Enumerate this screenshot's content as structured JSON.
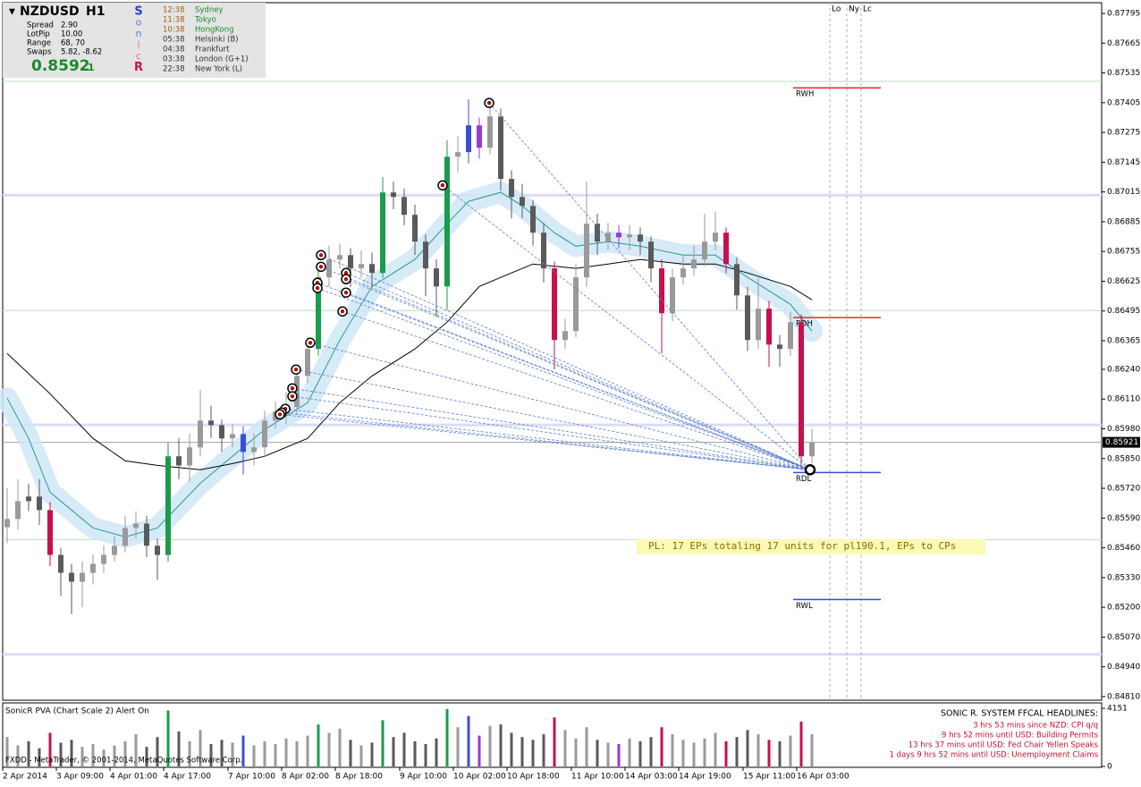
{
  "chart_data": {
    "type": "candlestick",
    "symbol": "NZDUSD",
    "timeframe": "H1",
    "categories": [
      "2 Apr 2014",
      null,
      null,
      null,
      null,
      "3 Apr 09:00",
      null,
      null,
      null,
      null,
      "4 Apr 01:00",
      null,
      null,
      null,
      null,
      "4 Apr 17:00",
      null,
      null,
      null,
      null,
      null,
      "7 Apr 10:00",
      null,
      null,
      null,
      null,
      "8 Apr 02:00",
      null,
      null,
      null,
      null,
      "8 Apr 18:00",
      null,
      null,
      null,
      null,
      null,
      "9 Apr 10:00",
      null,
      null,
      null,
      null,
      "10 Apr 02:00",
      null,
      null,
      null,
      null,
      "10 Apr 18:00",
      null,
      null,
      null,
      null,
      null,
      "11 Apr 10:00",
      null,
      null,
      null,
      null,
      "14 Apr 03:00",
      null,
      null,
      null,
      null,
      "14 Apr 19:00",
      null,
      null,
      null,
      null,
      null,
      "15 Apr 11:00",
      null,
      null,
      null,
      null,
      "16 Apr 03:00",
      null
    ],
    "open": [
      0.8555,
      0.85586,
      0.85664,
      0.85684,
      0.85625,
      0.85429,
      0.85351,
      0.85312,
      0.85351,
      0.8539,
      0.85429,
      0.85469,
      0.85547,
      0.85566,
      0.85469,
      0.85429,
      0.8586,
      0.8582,
      0.85899,
      0.86016,
      0.85996,
      0.85938,
      0.85957,
      0.85879,
      0.85899,
      0.86016,
      0.86055,
      0.86075,
      0.86211,
      0.86329,
      0.86642,
      0.8672,
      0.86739,
      0.86681,
      0.867,
      0.86661,
      0.87013,
      0.86993,
      0.86915,
      0.86798,
      0.86681,
      0.86602,
      0.87169,
      0.87189,
      0.87306,
      0.87208,
      0.87345,
      0.87072,
      0.86993,
      0.86954,
      0.86837,
      0.86681,
      0.86368,
      0.86407,
      0.86642,
      0.86876,
      0.86798,
      0.86837,
      0.86817,
      0.86829,
      0.86798,
      0.86681,
      0.86485,
      0.86642,
      0.86681,
      0.8672,
      0.86798,
      0.86837,
      0.867,
      0.86563,
      0.86368,
      0.86505,
      0.86348,
      0.86329,
      0.86446,
      0.8586
    ],
    "high": [
      0.8572,
      0.8576,
      0.8574,
      0.8576,
      0.8566,
      0.8546,
      0.8539,
      0.854,
      0.8543,
      0.8547,
      0.8551,
      0.856,
      0.8562,
      0.856,
      0.855,
      0.8592,
      0.8594,
      0.8596,
      0.8615,
      0.8608,
      0.8602,
      0.86,
      0.8599,
      0.8596,
      0.8606,
      0.861,
      0.8614,
      0.8625,
      0.8638,
      0.867,
      0.8678,
      0.8679,
      0.8677,
      0.8676,
      0.8675,
      0.8708,
      0.8706,
      0.8703,
      0.8696,
      0.8683,
      0.8672,
      0.8724,
      0.8726,
      0.8742,
      0.8734,
      0.8741,
      0.8738,
      0.8711,
      0.8705,
      0.8698,
      0.8688,
      0.8671,
      0.8646,
      0.867,
      0.8706,
      0.8692,
      0.8688,
      0.8687,
      0.8687,
      0.8686,
      0.8682,
      0.8672,
      0.8668,
      0.8674,
      0.8678,
      0.8692,
      0.8693,
      0.8686,
      0.8673,
      0.866,
      0.8664,
      0.8654,
      0.8639,
      0.8649,
      0.8648,
      0.8598
    ],
    "low": [
      0.8548,
      0.8554,
      0.8562,
      0.8556,
      0.8538,
      0.8525,
      0.8517,
      0.852,
      0.853,
      0.8535,
      0.854,
      0.8544,
      0.855,
      0.8542,
      0.8532,
      0.854,
      0.8576,
      0.8575,
      0.8586,
      0.8594,
      0.8588,
      0.859,
      0.8578,
      0.8582,
      0.8586,
      0.8598,
      0.86,
      0.8604,
      0.8618,
      0.863,
      0.866,
      0.8668,
      0.866,
      0.8664,
      0.866,
      0.8664,
      0.8694,
      0.8687,
      0.8674,
      0.8656,
      0.8647,
      0.865,
      0.871,
      0.8714,
      0.8716,
      0.8718,
      0.8702,
      0.869,
      0.869,
      0.8678,
      0.8662,
      0.8624,
      0.8633,
      0.8638,
      0.866,
      0.8674,
      0.8676,
      0.8677,
      0.8676,
      0.8674,
      0.8662,
      0.8631,
      0.8645,
      0.8661,
      0.8665,
      0.8669,
      0.8676,
      0.8666,
      0.865,
      0.8632,
      0.8633,
      0.8625,
      0.8625,
      0.863,
      0.85801,
      0.8583
    ],
    "close": [
      0.85586,
      0.85664,
      0.85684,
      0.85625,
      0.85429,
      0.85351,
      0.85312,
      0.85351,
      0.8539,
      0.85429,
      0.85469,
      0.85547,
      0.85566,
      0.85469,
      0.85429,
      0.8586,
      0.8582,
      0.85899,
      0.86016,
      0.85996,
      0.85938,
      0.85957,
      0.85879,
      0.85899,
      0.86016,
      0.86055,
      0.86075,
      0.86211,
      0.86329,
      0.86642,
      0.8672,
      0.86739,
      0.86681,
      0.867,
      0.86661,
      0.87013,
      0.86993,
      0.86915,
      0.86798,
      0.86681,
      0.86602,
      0.87169,
      0.87189,
      0.87306,
      0.87208,
      0.87345,
      0.87072,
      0.86993,
      0.86954,
      0.86837,
      0.86681,
      0.86368,
      0.86407,
      0.86642,
      0.86876,
      0.86798,
      0.86837,
      0.86817,
      0.86829,
      0.86798,
      0.86681,
      0.86485,
      0.86642,
      0.86681,
      0.8672,
      0.86798,
      0.86837,
      0.867,
      0.86563,
      0.86368,
      0.86505,
      0.86348,
      0.86329,
      0.86446,
      0.8586,
      0.85921
    ],
    "colors": [
      "#9a9a9a",
      "#9a9a9a",
      "#5a5a5a",
      "#5a5a5a",
      "#c8104f",
      "#5a5a5a",
      "#5a5a5a",
      "#9a9a9a",
      "#9a9a9a",
      "#9a9a9a",
      "#9a9a9a",
      "#9a9a9a",
      "#9a9a9a",
      "#5a5a5a",
      "#5a5a5a",
      "#1a9c4a",
      "#5a5a5a",
      "#9a9a9a",
      "#9a9a9a",
      "#5a5a5a",
      "#5a5a5a",
      "#9a9a9a",
      "#3a4fd8",
      "#9a9a9a",
      "#9a9a9a",
      "#9a9a9a",
      "#9a9a9a",
      "#9a9a9a",
      "#9a9a9a",
      "#1a9c4a",
      "#9a9a9a",
      "#9a9a9a",
      "#5a5a5a",
      "#9a9a9a",
      "#5a5a5a",
      "#1a9c4a",
      "#5a5a5a",
      "#5a5a5a",
      "#5a5a5a",
      "#5a5a5a",
      "#5a5a5a",
      "#1a9c4a",
      "#9a9a9a",
      "#3a4fd8",
      "#9a3ad8",
      "#9a9a9a",
      "#5a5a5a",
      "#5a5a5a",
      "#5a5a5a",
      "#5a5a5a",
      "#5a5a5a",
      "#c8104f",
      "#9a9a9a",
      "#9a9a9a",
      "#9a9a9a",
      "#5a5a5a",
      "#9a9a9a",
      "#9a3ad8",
      "#9a9a9a",
      "#5a5a5a",
      "#5a5a5a",
      "#c8104f",
      "#9a9a9a",
      "#9a9a9a",
      "#9a9a9a",
      "#9a9a9a",
      "#9a9a9a",
      "#c8104f",
      "#5a5a5a",
      "#5a5a5a",
      "#9a9a9a",
      "#c8104f",
      "#5a5a5a",
      "#9a9a9a",
      "#c8104f",
      "#9a9a9a"
    ],
    "ylim": [
      0.84794,
      0.87842
    ],
    "yticks": [
      0.87795,
      0.87665,
      0.87535,
      0.87405,
      0.87275,
      0.87145,
      0.87015,
      0.86885,
      0.86755,
      0.86625,
      0.86495,
      0.86365,
      {
        "value": 0.8624,
        "label": "0.86240"
      },
      {
        "value": 0.8611,
        "label": "0.86110"
      },
      {
        "value": 0.8598,
        "label": "0.85980"
      },
      {
        "value": 0.8585,
        "label": "0.85850"
      },
      {
        "value": 0.8572,
        "label": "0.85720"
      },
      {
        "value": 0.8559,
        "label": "0.85590"
      },
      {
        "value": 0.8546,
        "label": "0.85460"
      },
      {
        "value": 0.8533,
        "label": "0.85330"
      },
      {
        "value": 0.852,
        "label": "0.85200"
      },
      {
        "value": 0.8507,
        "label": "0.85070"
      },
      {
        "value": 0.8494,
        "label": "0.84940"
      },
      {
        "value": 0.8481,
        "label": "0.84810"
      }
    ],
    "last_price": 0.85921,
    "lines": [
      {
        "color": "#2a9a8a",
        "band_color": "#cfe6f7",
        "x": [
          0,
          2,
          4,
          8,
          11,
          14,
          18,
          21,
          24,
          28,
          31,
          34,
          38,
          41,
          43,
          46,
          48,
          51,
          53,
          56,
          59,
          63,
          66,
          69,
          73,
          75
        ],
        "values": [
          0.86114,
          0.85938,
          0.85703,
          0.85547,
          0.85508,
          0.85547,
          0.85742,
          0.8586,
          0.85977,
          0.86094,
          0.86368,
          0.86602,
          0.8672,
          0.86876,
          0.86974,
          0.87013,
          0.86954,
          0.86837,
          0.86778,
          0.86798,
          0.86778,
          0.86739,
          0.86739,
          0.86642,
          0.86524,
          0.86407
        ]
      },
      {
        "color": "#000000",
        "x": [
          0,
          4,
          8,
          11,
          14,
          18,
          21,
          24,
          28,
          31,
          34,
          38,
          41,
          44,
          47,
          49,
          53,
          56,
          59,
          63,
          66,
          69,
          73,
          75
        ],
        "values": [
          0.86309,
          0.86133,
          0.85938,
          0.8584,
          0.8582,
          0.85801,
          0.85828,
          0.8586,
          0.85938,
          0.86094,
          0.86211,
          0.86329,
          0.86446,
          0.86602,
          0.86661,
          0.867,
          0.86681,
          0.867,
          0.8672,
          0.867,
          0.867,
          0.86661,
          0.86602,
          0.86544
        ]
      }
    ],
    "bands": [
      0.87001,
      0.85997,
      0.84995
    ],
    "band_color": "#dcdcf5",
    "pivots": [
      0.87498,
      0.86497,
      0.85496
    ],
    "pivot_color": "#b8e0b8",
    "ranges": [
      {
        "label": "RWH",
        "value": 0.8747,
        "color": "#e03020"
      },
      {
        "label": "RDH",
        "value": 0.86466,
        "color": "#e03020"
      },
      {
        "label": "RDL",
        "value": 0.85789,
        "color": "#3050d8"
      },
      {
        "label": "RWL",
        "value": 0.85234,
        "color": "#3050d8"
      }
    ],
    "sessions": [
      {
        "label": "Lo",
        "x": 76.67
      },
      {
        "label": "Ny",
        "x": 78.25
      },
      {
        "label": "Lc",
        "x": 79.58
      }
    ],
    "signals": {
      "color": "#c00000",
      "x": [
        44.92,
        40.58,
        29.25,
        29.25,
        31.58,
        31.58,
        28.92,
        28.92,
        31.58,
        31.25,
        28.25,
        26.92,
        26.58,
        26.58,
        25.92,
        25.58,
        25.42
      ],
      "values": [
        0.87404,
        0.87044,
        0.86739,
        0.86688,
        0.86661,
        0.86634,
        0.86618,
        0.86595,
        0.86575,
        0.86493,
        0.86356,
        0.86239,
        0.86157,
        0.86122,
        0.86067,
        0.86051,
        0.86043
      ],
      "target_x": 74.83,
      "target": 0.85801
    },
    "annotation": "PL: 17 EPs totaling 17 units for pl190.1, EPs to CPs",
    "volume": {
      "title": "SonicR PVA  (Chart Scale 2)  Alert On",
      "values": [
        2100,
        1500,
        1800,
        1300,
        2400,
        1700,
        1900,
        1400,
        1600,
        1200,
        1500,
        1800,
        2300,
        1400,
        2100,
        4000,
        2500,
        1800,
        2600,
        1600,
        1900,
        1700,
        2200,
        1500,
        1800,
        1600,
        2000,
        1800,
        2200,
        3000,
        2400,
        2700,
        1900,
        1500,
        1700,
        3300,
        2100,
        2400,
        1800,
        1600,
        2000,
        4100,
        2800,
        3600,
        2200,
        2900,
        3000,
        2400,
        2100,
        1900,
        2300,
        3500,
        2600,
        2000,
        2800,
        1900,
        1700,
        1600,
        2000,
        1800,
        2100,
        2800,
        2300,
        1900,
        1700,
        2000,
        2400,
        1800,
        2100,
        2600,
        2300,
        1900,
        1800,
        2200,
        3200,
        2300
      ],
      "ylim": [
        0,
        4151
      ],
      "yticks": [
        4151,
        0
      ]
    }
  },
  "info_panel": {
    "rows": [
      [
        "Spread",
        "2.90"
      ],
      [
        "LotPip",
        "10.00"
      ],
      [
        "Range",
        "68, 70"
      ],
      [
        "Swaps",
        "5.82, -8.62"
      ]
    ],
    "price": "0.8592",
    "price_last_digit": "1",
    "sonic": [
      "S",
      "o",
      "n",
      "i",
      "c",
      "R"
    ],
    "clocks": [
      [
        "12:38",
        "Sydney"
      ],
      [
        "11:38",
        "Tokyo"
      ],
      [
        "10:38",
        "HongKong"
      ],
      [
        "05:38",
        "Helsinki  (B)"
      ],
      [
        "04:38",
        "Frankfurt"
      ],
      [
        "03:38",
        "London  (G+1)"
      ],
      [
        "22:38",
        "New York  (L)"
      ]
    ]
  },
  "headlines": {
    "title": "SONIC R. SYSTEM  FFCAL HEADLINES:",
    "items": [
      "3 hrs 53 mins since NZD: CPI q/q",
      "9 hrs 52 mins until USD: Building Permits",
      "13 hrs 37 mins until USD: Fed Chair Yellen Speaks",
      "1 days 9 hrs 52 mins until USD: Unemployment Claims"
    ]
  },
  "footer": "FXDD - MetaTrader, © 2001-2014, MetaQuotes Software Corp."
}
